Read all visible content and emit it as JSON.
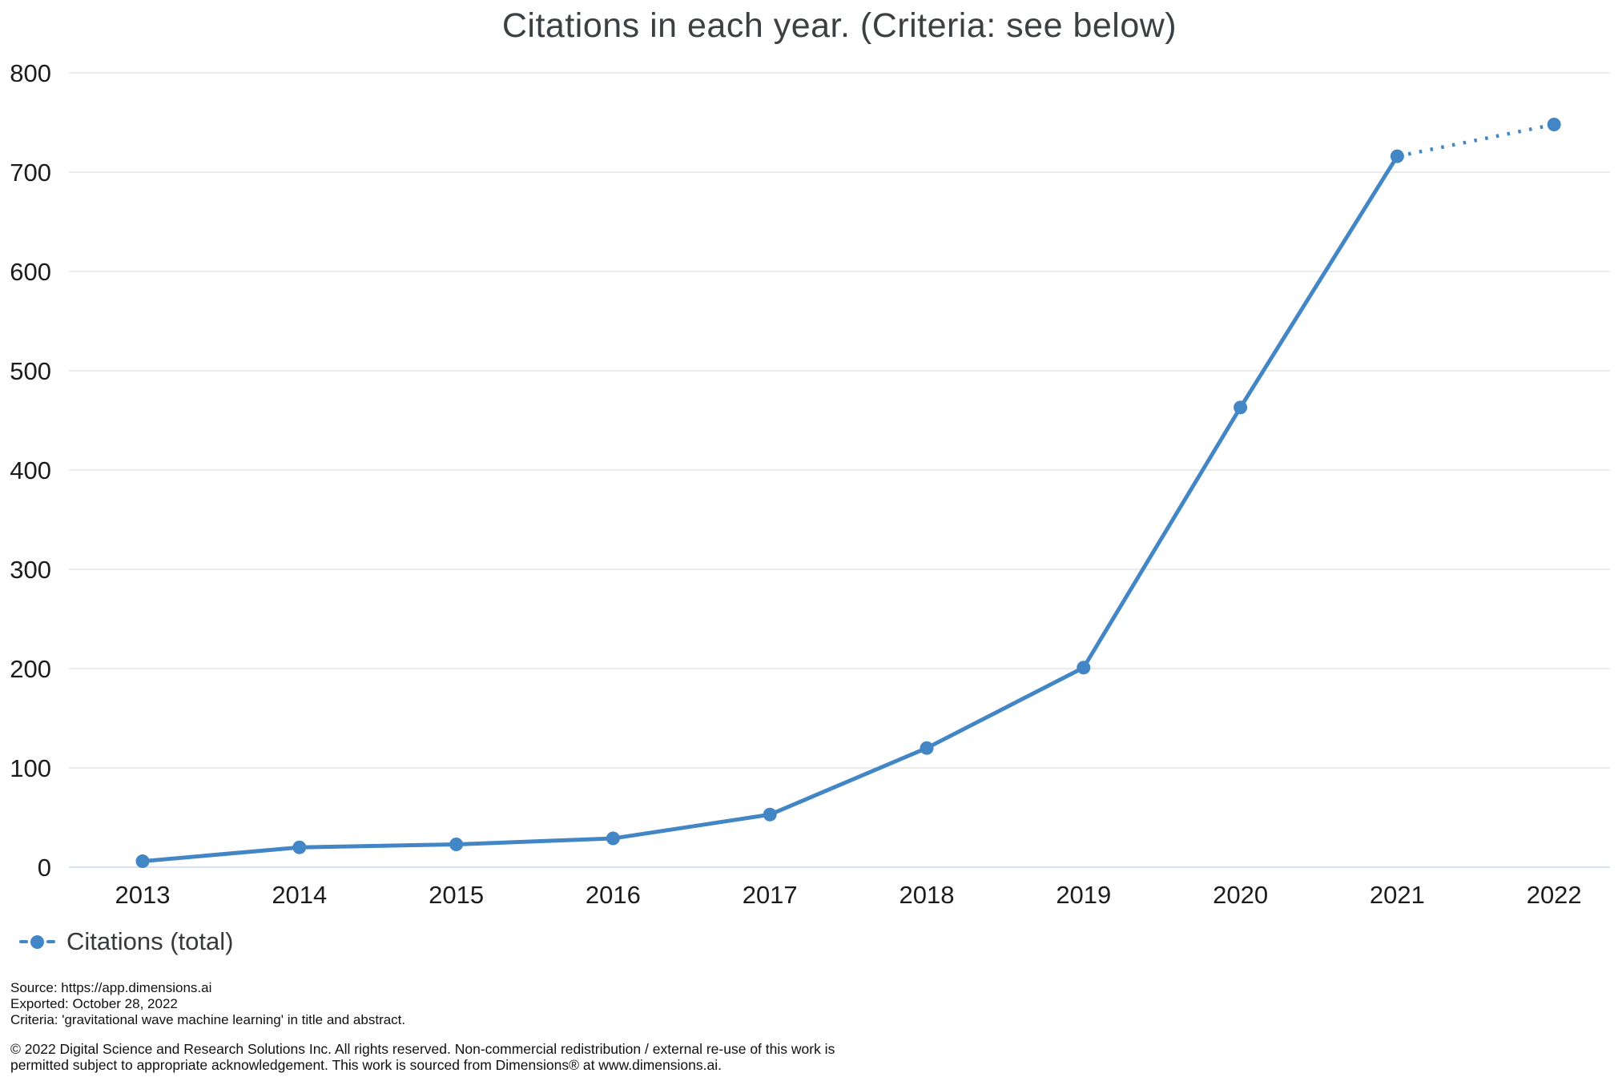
{
  "title": "Citations in each year. (Criteria: see below)",
  "legend": {
    "label": "Citations (total)",
    "marker": "dash-dot-dash"
  },
  "footer": {
    "source": "Source: https://app.dimensions.ai",
    "exported": "Exported: October 28, 2022",
    "criteria": "Criteria: 'gravitational wave machine learning' in title and abstract.",
    "copyright_lines": [
      "© 2022 Digital Science and Research Solutions Inc. All rights reserved. Non-commercial redistribution / external re-use of this work is",
      "permitted subject to appropriate acknowledgement. This work is sourced from Dimensions® at www.dimensions.ai."
    ]
  },
  "colors": {
    "line": "#4286c5",
    "grid": "#ebebeb",
    "axis_baseline": "#d9e2f0",
    "tick_text": "#1b1c1d",
    "title_text": "#3c4043"
  },
  "chart_data": {
    "type": "line",
    "title": "Citations in each year. (Criteria: see below)",
    "categories": [
      "2013",
      "2014",
      "2015",
      "2016",
      "2017",
      "2018",
      "2019",
      "2020",
      "2021",
      "2022"
    ],
    "series": [
      {
        "name": "Citations (total)",
        "values": [
          6,
          20,
          23,
          29,
          53,
          120,
          201,
          463,
          716,
          748
        ],
        "color": "#4286c5",
        "marker": "circle",
        "last_segment_style": "dotted"
      }
    ],
    "xlabel": "",
    "ylabel": "",
    "ylim": [
      0,
      800
    ],
    "yticks": [
      0,
      100,
      200,
      300,
      400,
      500,
      600,
      700,
      800
    ],
    "grid": "horizontal",
    "legend_position": "bottom-left"
  }
}
